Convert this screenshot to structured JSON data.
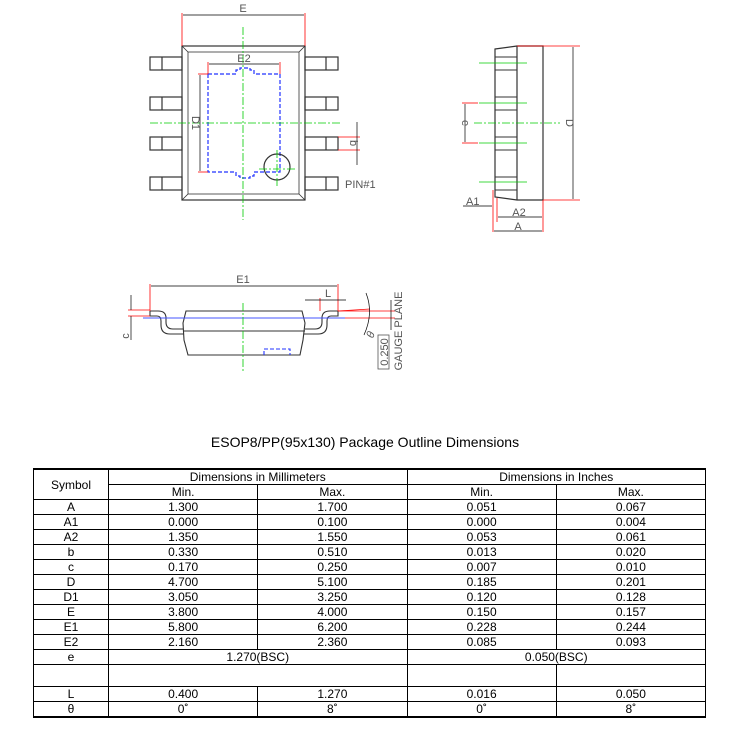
{
  "drawing": {
    "top_view": {
      "E": "E",
      "E2": "E2",
      "D1": "D1",
      "b": "b",
      "pin1": "PIN#1"
    },
    "side_view": {
      "e": "e",
      "D": "D",
      "A1": "A1",
      "A2": "A2",
      "A": "A"
    },
    "front_view": {
      "E1": "E1",
      "L": "L",
      "c": "c",
      "theta": "θ",
      "gauge_value": "0.250",
      "gauge_label": "GAUGE PLANE"
    },
    "colors": {
      "outline": "#333333",
      "dimension": "#ff0000",
      "centerline": "#00cc00",
      "pad": "#0000ff"
    }
  },
  "table_title": "ESOP8/PP(95x130) Package Outline Dimensions",
  "table": {
    "symbol_header": "Symbol",
    "mm_header": "Dimensions in Millimeters",
    "in_header": "Dimensions in Inches",
    "min": "Min.",
    "max": "Max.",
    "rows": [
      {
        "symbol": "A",
        "mm_min": "1.300",
        "mm_max": "1.700",
        "in_min": "0.051",
        "in_max": "0.067"
      },
      {
        "symbol": "A1",
        "mm_min": "0.000",
        "mm_max": "0.100",
        "in_min": "0.000",
        "in_max": "0.004"
      },
      {
        "symbol": "A2",
        "mm_min": "1.350",
        "mm_max": "1.550",
        "in_min": "0.053",
        "in_max": "0.061"
      },
      {
        "symbol": "b",
        "mm_min": "0.330",
        "mm_max": "0.510",
        "in_min": "0.013",
        "in_max": "0.020"
      },
      {
        "symbol": "c",
        "mm_min": "0.170",
        "mm_max": "0.250",
        "in_min": "0.007",
        "in_max": "0.010"
      },
      {
        "symbol": "D",
        "mm_min": "4.700",
        "mm_max": "5.100",
        "in_min": "0.185",
        "in_max": "0.201"
      },
      {
        "symbol": "D1",
        "mm_min": "3.050",
        "mm_max": "3.250",
        "in_min": "0.120",
        "in_max": "0.128"
      },
      {
        "symbol": "E",
        "mm_min": "3.800",
        "mm_max": "4.000",
        "in_min": "0.150",
        "in_max": "0.157"
      },
      {
        "symbol": "E1",
        "mm_min": "5.800",
        "mm_max": "6.200",
        "in_min": "0.228",
        "in_max": "0.244"
      },
      {
        "symbol": "E2",
        "mm_min": "2.160",
        "mm_max": "2.360",
        "in_min": "0.085",
        "in_max": "0.093"
      }
    ],
    "e_row": {
      "symbol": "e",
      "mm": "1.270(BSC)",
      "in": "0.050(BSC)"
    },
    "tail_rows": [
      {
        "symbol": "L",
        "mm_min": "0.400",
        "mm_max": "1.270",
        "in_min": "0.016",
        "in_max": "0.050"
      },
      {
        "symbol": "θ",
        "mm_min": "0˚",
        "mm_max": "8˚",
        "in_min": "0˚",
        "in_max": "8˚"
      }
    ]
  }
}
